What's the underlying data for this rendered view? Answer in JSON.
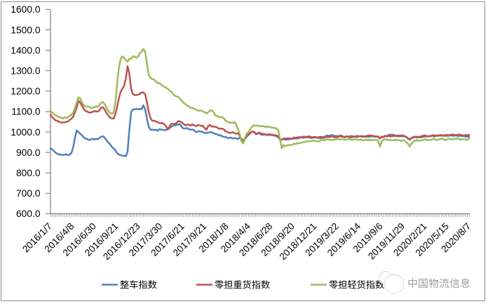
{
  "chart_data": {
    "type": "line",
    "title": "",
    "x_labels": [
      "2016/1/7",
      "2016/4/8",
      "2016/6/30",
      "2016/9/21",
      "2016/12/23",
      "2017/3/30",
      "2017/6/21",
      "2017/9/21",
      "2018/1/8",
      "2018/4/4",
      "2018/6/28",
      "2018/9/20",
      "2018/12/21",
      "2019/3/22",
      "2019/6/14",
      "2019/9/6",
      "2019/11/29",
      "2020/2/21",
      "2020/5/15",
      "2020/8/7"
    ],
    "y_tick_labels": [
      "1600.0",
      "1500.0",
      "1400.0",
      "1300.0",
      "1200.0",
      "1100.0",
      "1000.0",
      "900.0",
      "800.0",
      "700.0",
      "600.0"
    ],
    "ylim": [
      600,
      1600
    ],
    "y_step": 100,
    "grid": false,
    "legend_position": "bottom",
    "series": [
      {
        "name": "整车指数",
        "color": "#4f81bd",
        "values": [
          920.4,
          914.9,
          906.3,
          898.6,
          891.8,
          891.2,
          888.8,
          887.5,
          889.1,
          890.9,
          886.5,
          889.2,
          898.5,
          927.2,
          973.2,
          1008,
          999.6,
          990.7,
          983.6,
          972.9,
          967.9,
          965.6,
          960.1,
          963.4,
          966.2,
          962.8,
          966.9,
          964.2,
          972.1,
          976.2,
          979.2,
          971.4,
          959.4,
          948.6,
          940.5,
          926.9,
          919.3,
          910.1,
          896.8,
          889.1,
          887.5,
          883,
          884.7,
          881.3,
          904.3,
          1008.5,
          1097.3,
          1110.5,
          1109.8,
          1113.9,
          1111.1,
          1112.9,
          1111.1,
          1131,
          1112.4,
          1067.8,
          1028.3,
          1010.9,
          1011.5,
          1009.6,
          1011.2,
          1006.4,
          1013.2,
          1012.5,
          1010.2,
          1009.6,
          1009.7,
          1017.0,
          1019.0,
          1025.8,
          1030.4,
          1032.4,
          1036.2,
          1036.9,
          1037.4,
          1023.0,
          1017.2,
          1017.2,
          1019.4,
          1013.4,
          1011.3,
          1012.0,
          1008.4,
          999.7,
          1002.2,
          1004.3,
          1001.7,
          999.4,
          995.7,
          994.9,
          997.2,
          998.4,
          999.3,
          994.5,
          991.0,
          989.4,
          983.9,
          984.1,
          978.9,
          976.4,
          975.5,
          970.9,
          971.3,
          972.8,
          967.9,
          970.4,
          967.8,
          965.7,
          973.9,
          960.0,
          954.8,
          966.7,
          976.8,
          985.9,
          994.3,
          1002.0,
          1001.9,
          991.1,
          990.5,
          995.0,
          988.2,
          985.5,
          988.6,
          985.5,
          986.2,
          984.7,
          985.3,
          984.0,
          981.7,
          980.0,
          973.4,
          963.1,
          962.8,
          965.3,
          963.1,
          964.1,
          963.4,
          965.9,
          967.0,
          967.4,
          968.6,
          968.4,
          969.8,
          975.4,
          971.0,
          972.5,
          974.2,
          973.9,
          972.5,
          970.4,
          971.4,
          974.2,
          971.8,
          970.6,
          969.7,
          973.5,
          970.1,
          980.5,
          983.1,
          980.7,
          984.0,
          984.0,
          980.7,
          980.8,
          979.3,
          981.2,
          983.1,
          977.2,
          973.5,
          978.3,
          977.2,
          974.1,
          974.3,
          975.6,
          978.0,
          974.8,
          978.8,
          979.3,
          976.4,
          977.7,
          976.6,
          976.9,
          976.7,
          979.2,
          978.8,
          976.7,
          978.9,
          975.0,
          967.8,
          975.2,
          974.4,
          979.2,
          978.7,
          986.3,
          986.1,
          986.4,
          986.2,
          980.1,
          978.9,
          978.0,
          979.2,
          978.6,
          980.0,
          976.6,
          967.0,
          962.0,
          969.2,
          972.2,
          976.5,
          973.1,
          973.9,
          974.1,
          974.5,
          976.1,
          978.1,
          978.6,
          978.4,
          978.9,
          981.8,
          977.5,
          981.5,
          981.7,
          983.0,
          982.0,
          982.6,
          981.8,
          980.9,
          981.5,
          981.8,
          983.6,
          981.1,
          983.0,
          981.5,
          979.8,
          982.1,
          980.0,
          980.5,
          977.1,
          976.5,
          977.4
        ]
      },
      {
        "name": "零担重货指数",
        "color": "#c0504d",
        "values": [
          1085.3,
          1072.2,
          1064.2,
          1056.0,
          1054.6,
          1048.7,
          1047.1,
          1046.6,
          1047.4,
          1049.1,
          1051.3,
          1058.6,
          1065.8,
          1075.2,
          1098.3,
          1120.8,
          1152,
          1143.9,
          1128.6,
          1112.6,
          1103.2,
          1099.5,
          1095.2,
          1095.3,
          1098.5,
          1102.2,
          1100.9,
          1099.7,
          1106.2,
          1120.7,
          1119.3,
          1109.9,
          1092.0,
          1081.8,
          1070.3,
          1066.4,
          1065.2,
          1087.4,
          1121.3,
          1163.6,
          1195.2,
          1211.9,
          1225.4,
          1260.4,
          1322,
          1285.8,
          1212.4,
          1185.7,
          1181.1,
          1180.6,
          1182.2,
          1187.3,
          1192.5,
          1193.9,
          1185.0,
          1147.7,
          1099.6,
          1069.2,
          1055.4,
          1055.2,
          1052.3,
          1049.5,
          1043.5,
          1042.9,
          1043.8,
          1037.9,
          1027.9,
          1011.8,
          1028.8,
          1040.6,
          1039.7,
          1038.7,
          1044.5,
          1053.4,
          1051.0,
          1046.4,
          1039.1,
          1032.7,
          1036.5,
          1035.8,
          1031.4,
          1037.6,
          1032.2,
          1028.8,
          1033.7,
          1033.0,
          1030.1,
          1030.0,
          1018.8,
          1010.5,
          1028.5,
          1035.1,
          1026.1,
          1027.1,
          1025.3,
          1023.3,
          1016.4,
          1016.9,
          1015.6,
          1012.4,
          1003.4,
          1000.2,
          995.8,
          995.8,
          999.4,
          994.8,
          991.1,
          994.9,
          980.2,
          966.4,
          958,
          969.3,
          981.6,
          987.3,
          995.6,
          1002.2,
          1000.7,
          994.1,
          991.0,
          997.6,
          993.0,
          990.5,
          990.6,
          987.0,
          988.4,
          987.8,
          987.4,
          985.8,
          983.5,
          983.6,
          978.4,
          963,
          963.2,
          967.4,
          968.2,
          967.7,
          969.0,
          967.9,
          968.0,
          972.9,
          971.2,
          974.1,
          974.7,
          973.3,
          977.3,
          977.3,
          975.5,
          978.2,
          977.9,
          973.6,
          975.3,
          975.8,
          973.3,
          974.1,
          975.9,
          976.5,
          973.6,
          975.1,
          976.0,
          975.3,
          977.2,
          979.0,
          973.7,
          974.1,
          976.4,
          979.2,
          976.6,
          976.7,
          975.5,
          979.1,
          976.0,
          980.3,
          979.6,
          977.5,
          978.8,
          980.8,
          978.0,
          979.5,
          979.8,
          978.0,
          979.2,
          982.2,
          982.8,
          982.4,
          981.3,
          979.3,
          977.7,
          977.9,
          968,
          977.1,
          976.0,
          981.8,
          977.5,
          981.8,
          977.6,
          979.5,
          980.7,
          981.1,
          982.8,
          982.9,
          982.5,
          983.8,
          978.7,
          975.5,
          969.7,
          964,
          971.6,
          974.8,
          977.1,
          976.4,
          975.9,
          977.1,
          979.8,
          982.7,
          983.1,
          978.6,
          979.8,
          980.8,
          984.9,
          982.6,
          981.8,
          984.3,
          982.3,
          985.2,
          981.0,
          984.3,
          985.5,
          984.2,
          984.7,
          987.6,
          987.4,
          983.8,
          986.5,
          987.5,
          986.3,
          983.7,
          982.6,
          985.4,
          984.3,
          985.7
        ]
      },
      {
        "name": "零担轻货指数",
        "color": "#9bbb59",
        "values": [
          1104.5,
          1095.5,
          1086.2,
          1082.6,
          1075.8,
          1074.1,
          1070.5,
          1065.9,
          1072.2,
          1068.8,
          1072.6,
          1079.5,
          1085.3,
          1094.6,
          1117.1,
          1144.3,
          1170,
          1162.7,
          1143.9,
          1131.0,
          1124.7,
          1124.3,
          1122.9,
          1118.0,
          1118.9,
          1119.7,
          1126.6,
          1122.7,
          1132.9,
          1142.8,
          1146.7,
          1135.6,
          1119.1,
          1102.7,
          1093.4,
          1088.8,
          1096.5,
          1141.8,
          1231.9,
          1312.9,
          1356,
          1370.2,
          1362.5,
          1352.3,
          1343.8,
          1358.0,
          1358.3,
          1370.2,
          1368.6,
          1363.5,
          1369.4,
          1385.8,
          1393.1,
          1406,
          1394.2,
          1337.5,
          1280.1,
          1266.4,
          1259.8,
          1258.0,
          1247.2,
          1239.2,
          1239.6,
          1234.1,
          1225.1,
          1221.1,
          1216.2,
          1211.1,
          1201.6,
          1197.1,
          1184.5,
          1177.2,
          1174.2,
          1170.9,
          1162.2,
          1151.5,
          1143.1,
          1136.7,
          1129.4,
          1125.0,
          1118.0,
          1116.8,
          1114.3,
          1109.5,
          1104.9,
          1104.3,
          1105.2,
          1100.5,
          1096.8,
          1090.8,
          1096.4,
          1104.4,
          1106.8,
          1097.5,
          1082.4,
          1079.4,
          1073.4,
          1072.4,
          1073.6,
          1066.0,
          1055.2,
          1050.1,
          1045.0,
          1047.2,
          1043.8,
          1048.3,
          1036.3,
          1015.3,
          987.8,
          954.1,
          944,
          971.7,
          992.2,
          998.9,
          1014.7,
          1025.5,
          1033.0,
          1030.4,
          1031.7,
          1029.0,
          1027.6,
          1028.7,
          1028.3,
          1023.2,
          1027.4,
          1024.5,
          1022.2,
          1021.0,
          1019.8,
          1016.9,
          1008.6,
          964.4,
          920,
          936.7,
          930.1,
          934.4,
          935.6,
          936.7,
          937.8,
          942.9,
          940.7,
          945.7,
          944.4,
          947.3,
          950.1,
          950.7,
          953.9,
          954.0,
          954.8,
          955.9,
          957.8,
          957.1,
          955.0,
          954.2,
          958.0,
          961.9,
          959.0,
          962.6,
          963.9,
          961.6,
          961.9,
          961.0,
          962.1,
          963.5,
          967.1,
          964.6,
          962.9,
          964.8,
          962.0,
          962.1,
          966.2,
          964.4,
          962.7,
          961.9,
          965.4,
          962.2,
          961.1,
          964.4,
          959.3,
          960.5,
          963.9,
          959.2,
          963.0,
          958.9,
          962.0,
          960.7,
          961.7,
          957.9,
          929,
          953.3,
          961.8,
          963.8,
          962.9,
          959.0,
          961.2,
          960.1,
          959.7,
          962.8,
          959.3,
          961.1,
          955.9,
          959.4,
          958.1,
          950.8,
          942.5,
          929,
          941.5,
          952.7,
          958.4,
          959.7,
          957.8,
          958.1,
          959.9,
          960.7,
          964.6,
          960.3,
          960.7,
          961.4,
          964.4,
          966.2,
          961.0,
          961.9,
          965.1,
          967.2,
          966.5,
          961.8,
          961.1,
          967.0,
          966.9,
          962.9,
          964.9,
          968.1,
          967.7,
          967.4,
          962.8,
          963.6,
          965.8,
          962.4,
          962.6,
          967.8
        ]
      }
    ]
  },
  "legend": {
    "items": [
      {
        "label": "整车指数",
        "color": "#4f81bd"
      },
      {
        "label": "零担重货指数",
        "color": "#c0504d"
      },
      {
        "label": "零担轻货指数",
        "color": "#9bbb59"
      }
    ]
  },
  "watermark": {
    "text": "中国物流信息",
    "icon": "overlapping-circles-logo",
    "color": "#9b9b9b"
  },
  "frame": {
    "border_color": "#8e8e8e"
  }
}
